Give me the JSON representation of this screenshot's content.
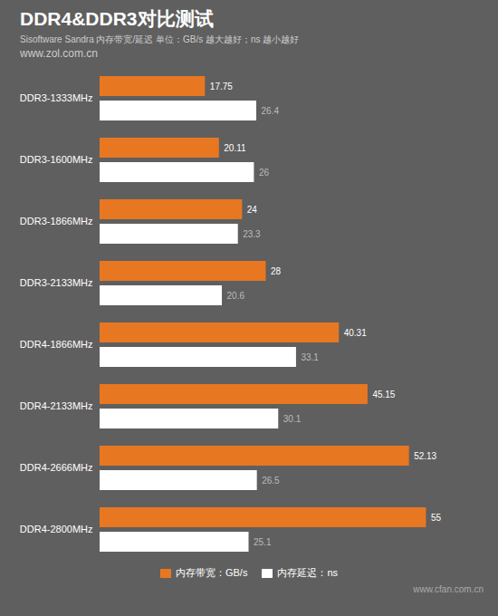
{
  "chart_data": {
    "type": "bar",
    "orientation": "horizontal",
    "title": "DDR4&DDR3对比测试",
    "subtitle": "Sisoftware Sandra 内存带宽/延迟   单位：GB/s 越大越好；ns 越小越好",
    "annotations": [
      "www.zol.com.cn",
      "www.cfan.com.cn"
    ],
    "categories": [
      "DDR3-1333MHz",
      "DDR3-1600MHz",
      "DDR3-1866MHz",
      "DDR3-2133MHz",
      "DDR4-1866MHz",
      "DDR4-2133MHz",
      "DDR4-2666MHz",
      "DDR4-2800MHz"
    ],
    "series": [
      {
        "name": "内存带宽：GB/s",
        "color": "#E87722",
        "values": [
          17.75,
          20.11,
          24,
          28,
          40.31,
          45.15,
          52.13,
          55
        ]
      },
      {
        "name": "内存延迟：ns",
        "color": "#FFFFFF",
        "values": [
          26.4,
          26,
          23.3,
          20.6,
          33.1,
          30.1,
          26.5,
          25.1
        ]
      }
    ],
    "xlim": [
      0,
      65
    ],
    "data_labels": true,
    "tick_labels": "y",
    "legend": "bottom"
  }
}
